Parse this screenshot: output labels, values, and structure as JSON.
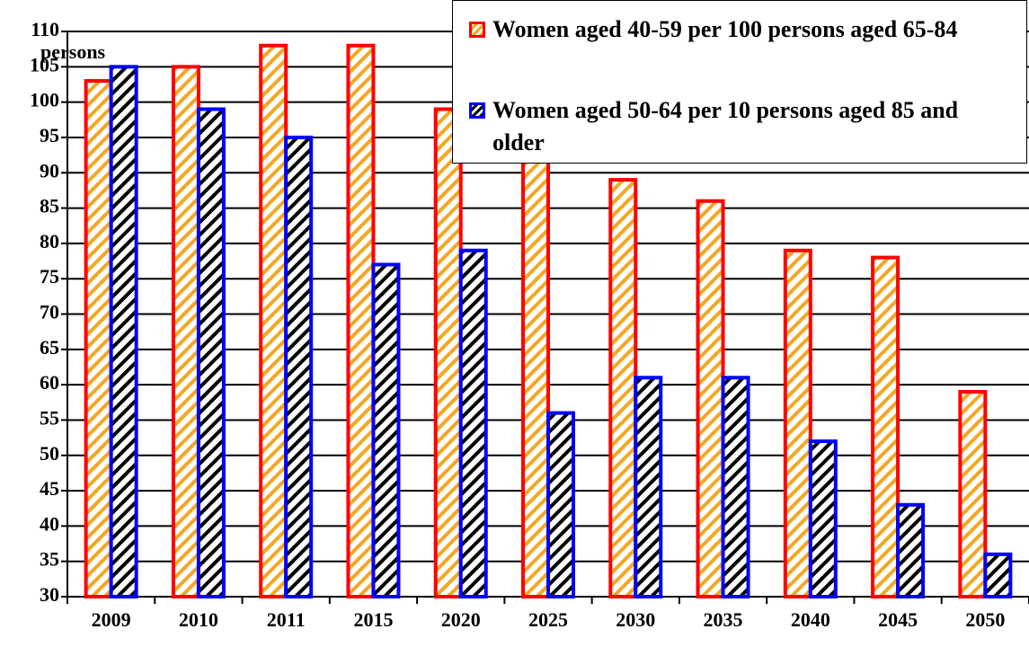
{
  "chart_data": {
    "type": "bar",
    "y_label": "persons",
    "categories": [
      "2009",
      "2010",
      "2011",
      "2015",
      "2020",
      "2025",
      "2030",
      "2035",
      "2040",
      "2045",
      "2050"
    ],
    "series": [
      {
        "name": "Women aged 40-59 per 100 persons aged 65-84",
        "color": "#ff0000",
        "hatch_color": "#f5a623",
        "values": [
          103,
          105,
          108,
          108,
          99,
          92,
          89,
          86,
          79,
          78,
          59
        ]
      },
      {
        "name": "Women aged 50-64 per 10 persons aged 85 and older",
        "color": "#0000ff",
        "hatch_color": "#000000",
        "values": [
          105,
          99,
          95,
          77,
          79,
          56,
          61,
          61,
          52,
          43,
          36
        ]
      }
    ],
    "ylim": [
      30,
      110
    ],
    "yticks": [
      30,
      35,
      40,
      45,
      50,
      55,
      60,
      65,
      70,
      75,
      80,
      85,
      90,
      95,
      100,
      105,
      110
    ],
    "grid": true,
    "legend": "upper right"
  }
}
